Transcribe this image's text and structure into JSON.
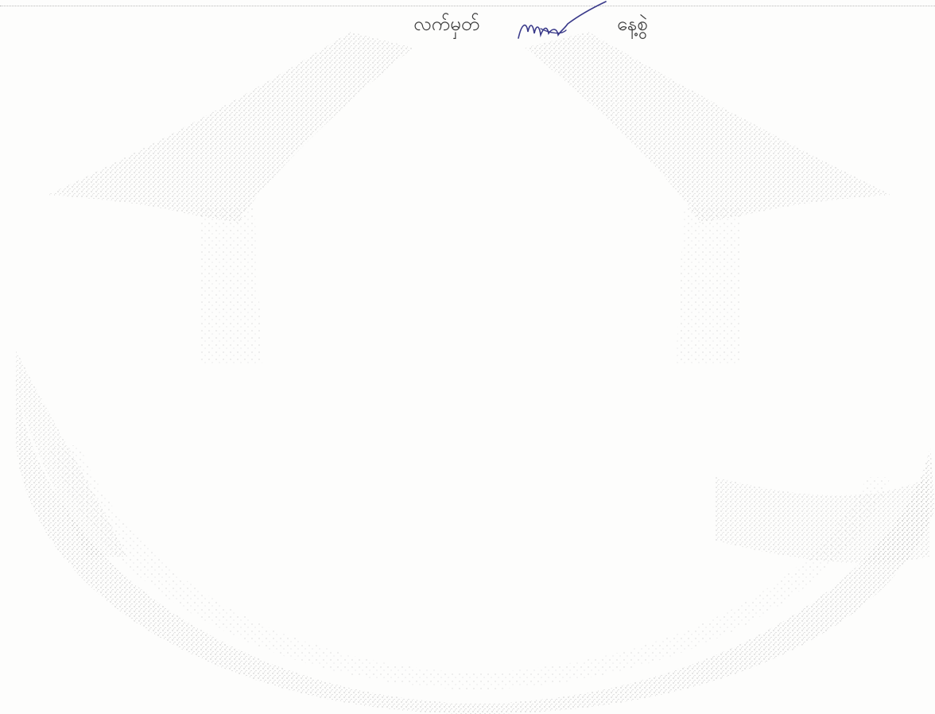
{
  "document": {
    "signature_label": "လက်မှတ်",
    "date_label": "နေ့စွဲ"
  },
  "watermark": {
    "description_icon": "seal-watermark-icon",
    "color": "#9a9a9a"
  },
  "signature": {
    "ink_color": "#3a3a8a"
  }
}
